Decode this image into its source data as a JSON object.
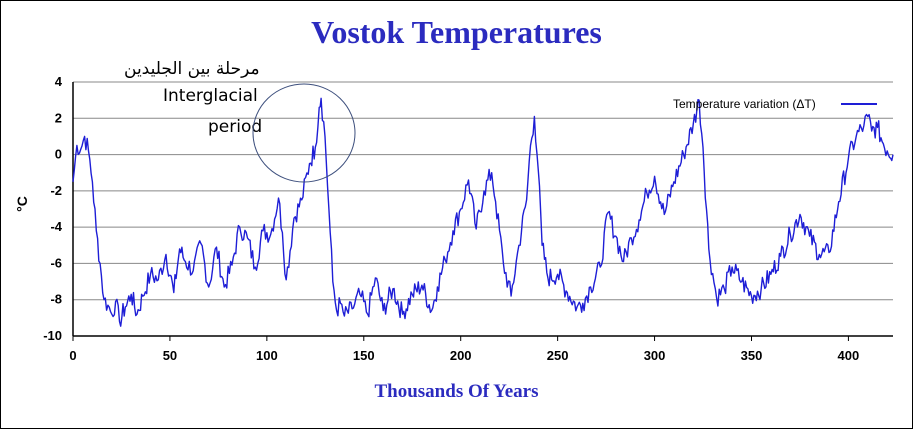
{
  "colors": {
    "series": "#1e1ed6",
    "title": "#2b2bbf",
    "grid": "#888888",
    "circle": "#3d4f7d"
  },
  "annotation": {
    "arabic": "مرحلة بين الجليدين",
    "line1": "Interglacial",
    "line2": "period"
  },
  "chart_data": {
    "type": "line",
    "title": "Vostok Temperatures",
    "xlabel": "Thousands Of Years",
    "ylabel": "°C",
    "xlim": [
      0,
      423
    ],
    "ylim": [
      -10,
      4
    ],
    "x_ticks": [
      0,
      50,
      100,
      150,
      200,
      250,
      300,
      350,
      400
    ],
    "y_ticks": [
      4,
      2,
      0,
      -2,
      -4,
      -6,
      -8,
      -10
    ],
    "grid": "horizontal",
    "legend_position": "top-right",
    "series": [
      {
        "name": "Temperature variation (ΔT)",
        "x": [
          0,
          2,
          4,
          6,
          8,
          10,
          12,
          14,
          16,
          18,
          20,
          22,
          24,
          27,
          30,
          33,
          36,
          40,
          44,
          48,
          52,
          55,
          58,
          62,
          66,
          70,
          74,
          78,
          82,
          86,
          90,
          94,
          98,
          102,
          106,
          108,
          110,
          114,
          118,
          122,
          125,
          127,
          128,
          130,
          132,
          134,
          136,
          138,
          140,
          144,
          148,
          152,
          156,
          160,
          165,
          170,
          175,
          180,
          185,
          188,
          192,
          196,
          200,
          204,
          208,
          212,
          216,
          218,
          222,
          226,
          230,
          234,
          236,
          238,
          240,
          242,
          245,
          250,
          255,
          260,
          263,
          267,
          272,
          276,
          280,
          284,
          288,
          292,
          296,
          300,
          305,
          310,
          315,
          320,
          323,
          325,
          328,
          332,
          336,
          340,
          345,
          350,
          355,
          360,
          365,
          370,
          375,
          380,
          385,
          390,
          395,
          400,
          404,
          408,
          410,
          412,
          415,
          418,
          420,
          423
        ],
        "y": [
          -1.5,
          0.5,
          0.3,
          1.0,
          0.2,
          -1.5,
          -4.2,
          -6.0,
          -8.0,
          -8.3,
          -8.8,
          -8.1,
          -9.2,
          -8.4,
          -7.7,
          -8.8,
          -7.8,
          -6.6,
          -6.9,
          -5.5,
          -7.6,
          -5.2,
          -5.9,
          -6.4,
          -4.9,
          -7.3,
          -5.1,
          -7.3,
          -6.1,
          -4.0,
          -4.6,
          -6.2,
          -4.2,
          -4.4,
          -2.4,
          -4.3,
          -6.9,
          -3.5,
          -2.5,
          -0.5,
          0.4,
          2.6,
          3.1,
          1.0,
          -3.0,
          -7.0,
          -8.6,
          -8.2,
          -8.9,
          -8.5,
          -7.7,
          -8.8,
          -6.8,
          -8.6,
          -7.4,
          -8.8,
          -7.7,
          -7.2,
          -8.6,
          -7.3,
          -5.8,
          -4.2,
          -3.0,
          -1.4,
          -4.1,
          -2.0,
          -1.0,
          -2.6,
          -6.0,
          -7.8,
          -5.0,
          -2.5,
          0.5,
          2.1,
          -0.8,
          -5.0,
          -6.8,
          -6.6,
          -7.6,
          -8.4,
          -8.2,
          -7.3,
          -6.2,
          -3.2,
          -4.5,
          -5.9,
          -4.6,
          -3.6,
          -2.1,
          -1.2,
          -3.3,
          -1.5,
          0.0,
          1.7,
          3.0,
          0.4,
          -5.2,
          -7.9,
          -7.4,
          -6.2,
          -7.0,
          -7.8,
          -7.4,
          -6.6,
          -5.6,
          -4.4,
          -3.3,
          -4.5,
          -5.5,
          -5.4,
          -2.6,
          -0.2,
          1.0,
          1.6,
          2.1,
          1.3,
          1.5,
          0.6,
          0.2,
          0.0
        ]
      }
    ]
  }
}
